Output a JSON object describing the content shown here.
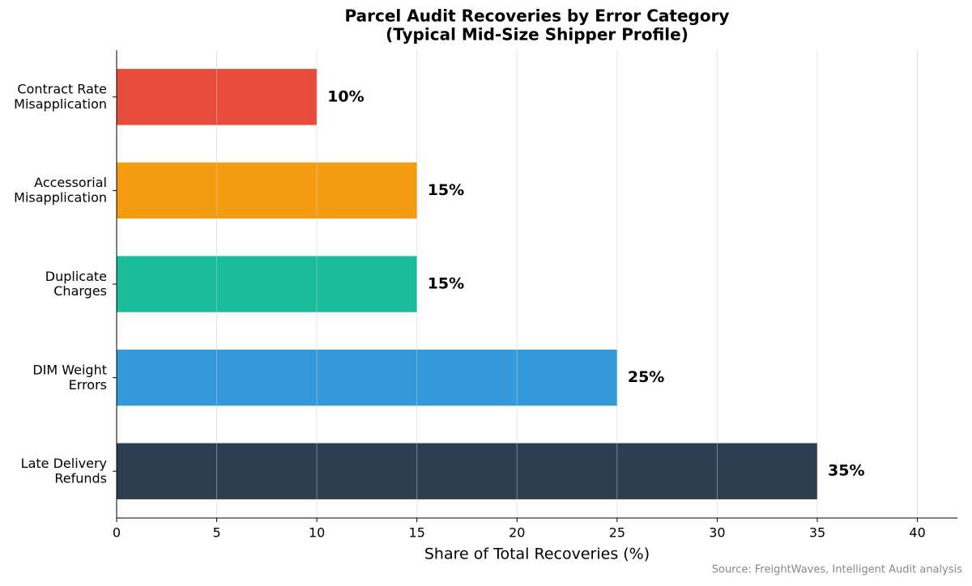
{
  "chart_data": {
    "type": "barh",
    "title": "Parcel Audit Recoveries by Error Category\n(Typical Mid-Size Shipper Profile)",
    "categories": [
      "Contract Rate\nMisapplication",
      "Accessorial\nMisapplication",
      "Duplicate\nCharges",
      "DIM Weight\nErrors",
      "Late Delivery\nRefunds"
    ],
    "values": [
      10,
      15,
      15,
      25,
      35
    ],
    "value_labels": [
      "10%",
      "15%",
      "15%",
      "25%",
      "35%"
    ],
    "colors": [
      "#e74c3c",
      "#f39c12",
      "#1abc9c",
      "#3498db",
      "#2c3e50"
    ],
    "xlabel": "Share of Total Recoveries (%)",
    "xlim": [
      0,
      42
    ],
    "xticks": [
      0,
      5,
      10,
      15,
      20,
      25,
      30,
      35,
      40
    ],
    "grid": true,
    "source": "Source: FreightWaves, Intelligent Audit analysis"
  }
}
